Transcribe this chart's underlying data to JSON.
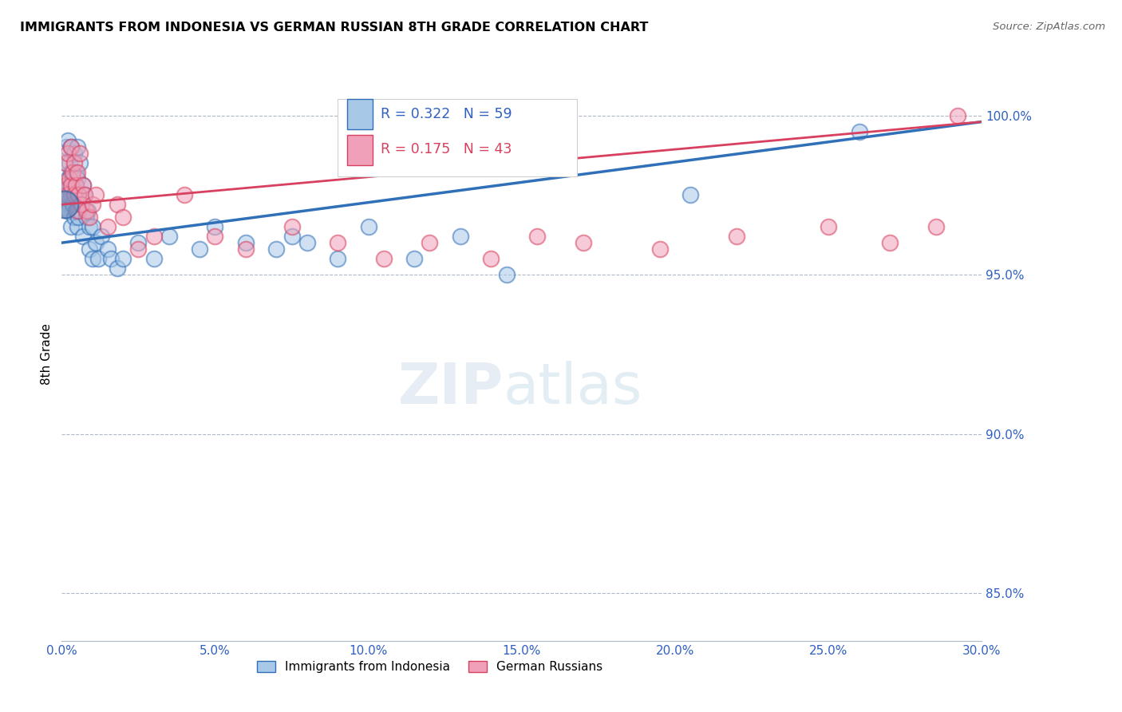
{
  "title": "IMMIGRANTS FROM INDONESIA VS GERMAN RUSSIAN 8TH GRADE CORRELATION CHART",
  "source": "Source: ZipAtlas.com",
  "ylabel": "8th Grade",
  "xlim": [
    0.0,
    30.0
  ],
  "ylim": [
    83.5,
    101.5
  ],
  "yticks": [
    85.0,
    90.0,
    95.0,
    100.0
  ],
  "xticks": [
    0.0,
    5.0,
    10.0,
    15.0,
    20.0,
    25.0,
    30.0
  ],
  "blue_R": 0.322,
  "blue_N": 59,
  "pink_R": 0.175,
  "pink_N": 43,
  "blue_color": "#a8c8e8",
  "pink_color": "#f0a0b8",
  "blue_line_color": "#3070b8",
  "pink_line_color": "#d84060",
  "legend_blue": "Immigrants from Indonesia",
  "legend_pink": "German Russians",
  "watermark_zip": "ZIP",
  "watermark_atlas": "atlas",
  "blue_x": [
    0.1,
    0.15,
    0.15,
    0.2,
    0.2,
    0.2,
    0.25,
    0.25,
    0.3,
    0.3,
    0.3,
    0.3,
    0.35,
    0.35,
    0.4,
    0.4,
    0.4,
    0.45,
    0.45,
    0.5,
    0.5,
    0.5,
    0.55,
    0.55,
    0.6,
    0.6,
    0.65,
    0.7,
    0.7,
    0.75,
    0.8,
    0.85,
    0.9,
    0.9,
    1.0,
    1.0,
    1.1,
    1.2,
    1.3,
    1.5,
    1.6,
    1.8,
    2.0,
    2.5,
    3.0,
    3.5,
    4.5,
    5.0,
    6.0,
    7.0,
    7.5,
    8.0,
    9.0,
    10.0,
    11.5,
    13.0,
    14.5,
    20.5,
    26.0
  ],
  "blue_y": [
    97.5,
    98.5,
    99.0,
    99.2,
    98.0,
    97.0,
    98.5,
    97.8,
    99.0,
    98.2,
    97.5,
    96.5,
    98.0,
    97.2,
    98.8,
    97.8,
    96.8,
    98.2,
    97.0,
    99.0,
    98.0,
    96.5,
    97.5,
    96.8,
    98.5,
    97.0,
    97.2,
    97.8,
    96.2,
    97.5,
    96.8,
    97.0,
    96.5,
    95.8,
    96.5,
    95.5,
    96.0,
    95.5,
    96.2,
    95.8,
    95.5,
    95.2,
    95.5,
    96.0,
    95.5,
    96.2,
    95.8,
    96.5,
    96.0,
    95.8,
    96.2,
    96.0,
    95.5,
    96.5,
    95.5,
    96.2,
    95.0,
    97.5,
    99.5
  ],
  "pink_x": [
    0.1,
    0.15,
    0.2,
    0.2,
    0.25,
    0.3,
    0.3,
    0.35,
    0.4,
    0.4,
    0.45,
    0.5,
    0.5,
    0.55,
    0.6,
    0.65,
    0.7,
    0.75,
    0.8,
    0.9,
    1.0,
    1.1,
    1.5,
    1.8,
    2.0,
    2.5,
    3.0,
    4.0,
    5.0,
    6.0,
    7.5,
    9.0,
    10.5,
    12.0,
    14.0,
    15.5,
    17.0,
    19.5,
    22.0,
    25.0,
    27.0,
    28.5,
    29.2
  ],
  "pink_y": [
    98.5,
    97.8,
    98.8,
    97.5,
    98.0,
    99.0,
    97.8,
    98.2,
    97.5,
    98.5,
    97.8,
    98.2,
    97.0,
    97.5,
    98.8,
    97.2,
    97.8,
    97.5,
    97.0,
    96.8,
    97.2,
    97.5,
    96.5,
    97.2,
    96.8,
    95.8,
    96.2,
    97.5,
    96.2,
    95.8,
    96.5,
    96.0,
    95.5,
    96.0,
    95.5,
    96.2,
    96.0,
    95.8,
    96.2,
    96.5,
    96.0,
    96.5,
    100.0
  ],
  "big_dot_x": 0.1,
  "big_dot_y": 97.2
}
